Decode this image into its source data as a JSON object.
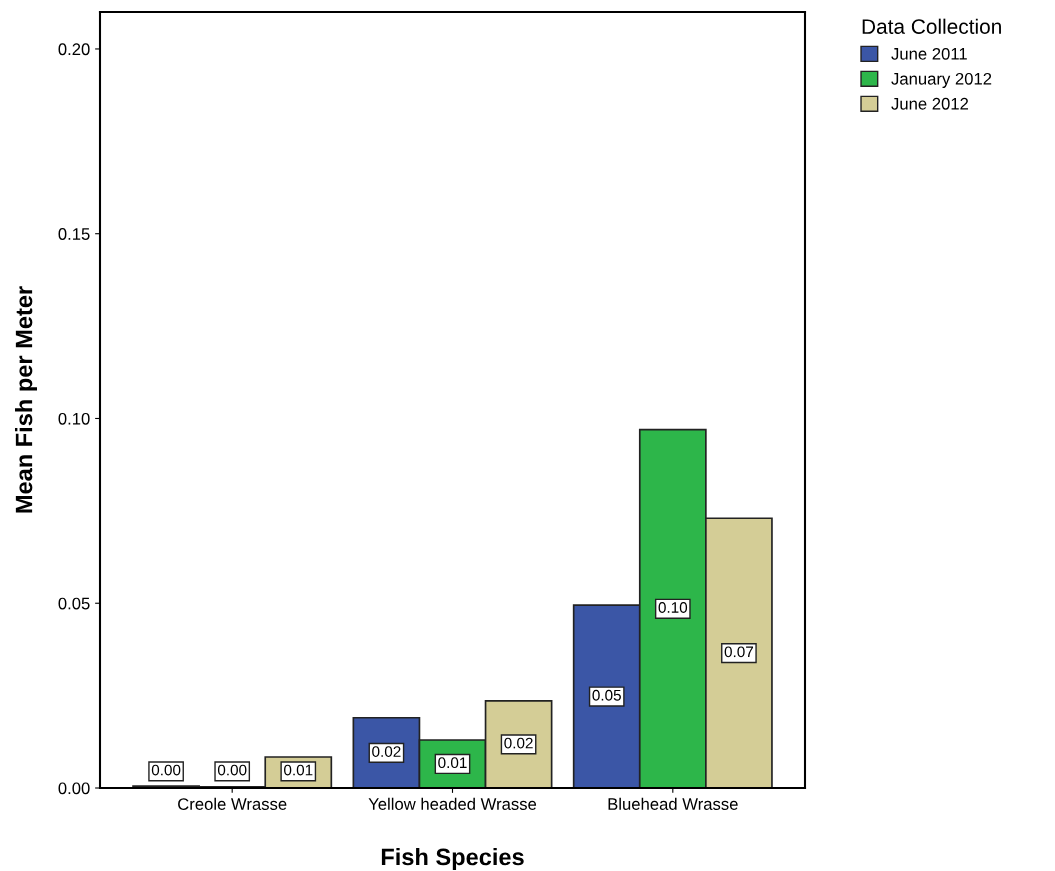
{
  "chart_data": {
    "type": "bar",
    "xlabel": "Fish Species",
    "ylabel": "Mean Fish per Meter",
    "legend_title": "Data Collection",
    "legend": "top right",
    "categories": [
      "Creole Wrasse",
      "Yellow headed Wrasse",
      "Bluehead Wrasse"
    ],
    "series": [
      {
        "name": "June 2011",
        "color": "#3b56a6",
        "values": [
          0.0005,
          0.019,
          0.0495
        ],
        "value_labels": [
          "0.00",
          "0.02",
          "0.05"
        ]
      },
      {
        "name": "January 2012",
        "color": "#2db64a",
        "values": [
          0.0003,
          0.013,
          0.097
        ],
        "value_labels": [
          "0.00",
          "0.01",
          "0.10"
        ]
      },
      {
        "name": "June 2012",
        "color": "#d4cd96",
        "values": [
          0.0084,
          0.0236,
          0.073
        ],
        "value_labels": [
          "0.01",
          "0.02",
          "0.07"
        ]
      }
    ],
    "ylim": [
      0,
      0.21
    ],
    "yticks": [
      {
        "value": 0,
        "label": "0.00"
      },
      {
        "value": 0.05,
        "label": "0.05"
      },
      {
        "value": 0.1,
        "label": "0.10"
      },
      {
        "value": 0.15,
        "label": "0.15"
      },
      {
        "value": 0.2,
        "label": "0.20"
      }
    ],
    "grid": false
  }
}
